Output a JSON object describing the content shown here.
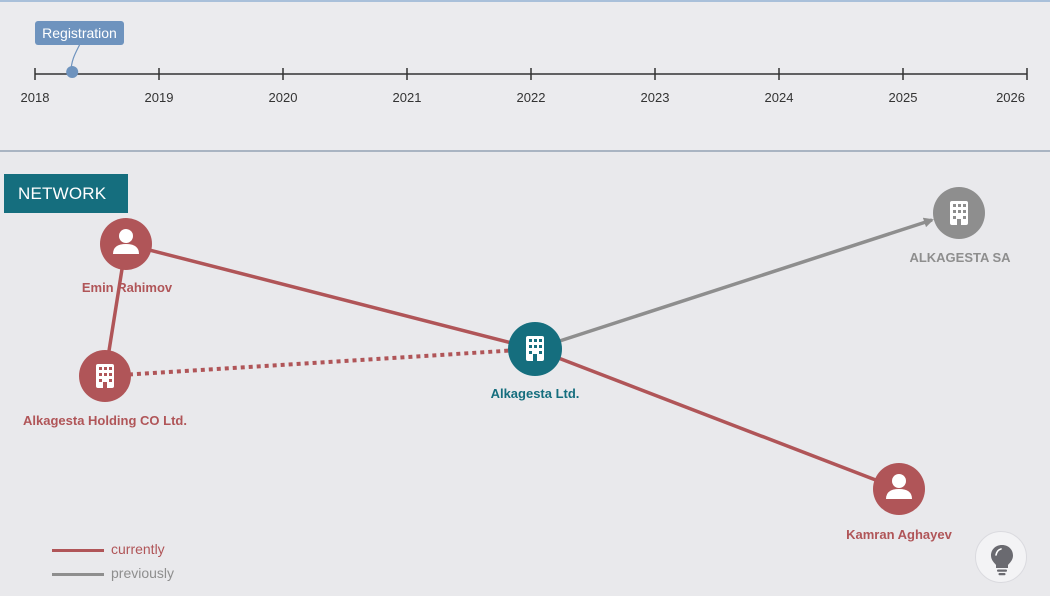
{
  "timeline": {
    "marker_label": "Registration",
    "marker_date": 2018.3,
    "start_year": 2018,
    "end_year": 2026,
    "years": [
      "2018",
      "2019",
      "2020",
      "2021",
      "2022",
      "2023",
      "2024",
      "2025",
      "2026"
    ]
  },
  "network": {
    "tab_label": "NETWORK",
    "nodes": [
      {
        "id": "emin",
        "label": "Emin Rahimov",
        "kind": "person",
        "status": "currently"
      },
      {
        "id": "holding",
        "label": "Alkagesta Holding CO Ltd.",
        "kind": "company",
        "status": "currently"
      },
      {
        "id": "ltd",
        "label": "Alkagesta Ltd.",
        "kind": "company",
        "status": "focus"
      },
      {
        "id": "sa",
        "label": "ALKAGESTA SA",
        "kind": "company",
        "status": "previously"
      },
      {
        "id": "kamran",
        "label": "Kamran Aghayev",
        "kind": "person",
        "status": "currently"
      }
    ],
    "edges": [
      {
        "from": "emin",
        "to": "ltd",
        "style": "solid",
        "status": "currently"
      },
      {
        "from": "ltd",
        "to": "kamran",
        "style": "solid",
        "status": "currently"
      },
      {
        "from": "emin",
        "to": "holding",
        "style": "solid",
        "status": "currently"
      },
      {
        "from": "holding",
        "to": "ltd",
        "style": "dotted",
        "status": "currently"
      },
      {
        "from": "ltd",
        "to": "sa",
        "style": "arrow",
        "status": "previously"
      }
    ]
  },
  "legend": {
    "currently_label": "currently",
    "previously_label": "previously"
  },
  "colors": {
    "currently": "#b05558",
    "previously": "#8e8e8e",
    "focus": "#156e7e",
    "marker": "#6e93be",
    "axis": "#333333"
  },
  "icons": {
    "person": "person-icon",
    "company": "building-icon",
    "hint": "lightbulb-icon"
  }
}
